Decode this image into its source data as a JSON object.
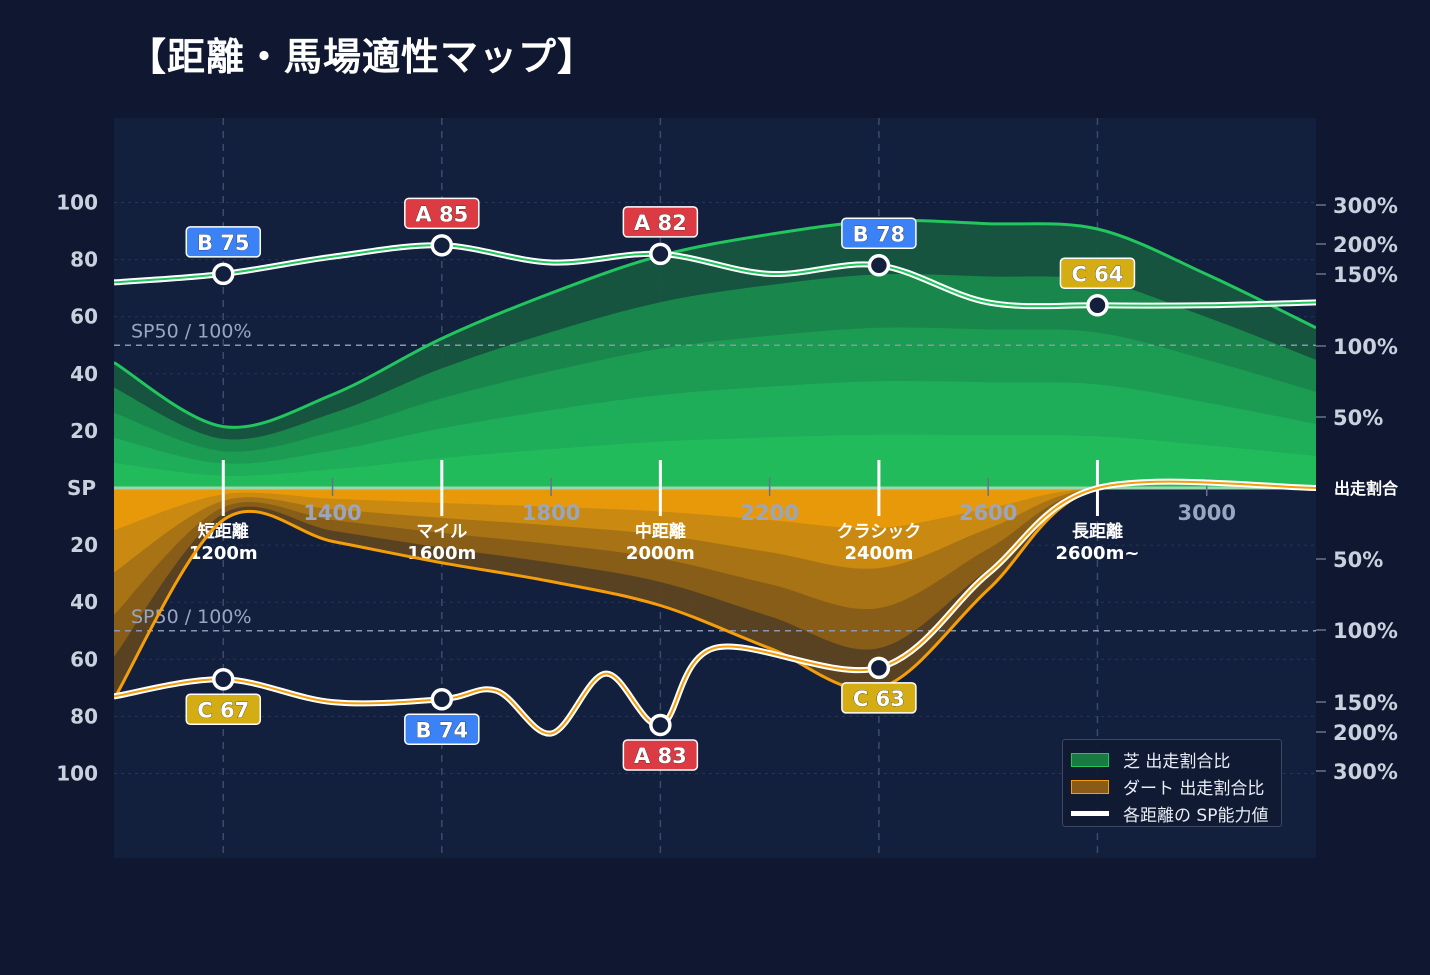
{
  "title": "【距離・馬場適性マップ】",
  "colors": {
    "background": "#0f1830",
    "plot": "#121f3d",
    "turf": "#22c55e",
    "dirt": "#f59e0b",
    "grade_a": "#dc3b43",
    "grade_b": "#3b82f6",
    "grade_c": "#d4ac14"
  },
  "chart_data": {
    "type": "area",
    "x_ticks": [
      "1400",
      "1800",
      "2200",
      "2600",
      "3000"
    ],
    "y_ticks_turf": [
      "100",
      "80",
      "60",
      "40",
      "20"
    ],
    "y_ticks_dirt": [
      "20",
      "40",
      "60",
      "80",
      "100"
    ],
    "y_center_label": "SP",
    "right_axis_center_label": "出走割合",
    "right_ticks_turf": [
      "300%",
      "200%",
      "150%",
      "100%",
      "50%"
    ],
    "right_ticks_dirt": [
      "50%",
      "100%",
      "150%",
      "200%",
      "300%"
    ],
    "reference_label": "SP50 / 100%",
    "categories": [
      {
        "name": "短距離",
        "dist": "1200m",
        "x": 1200
      },
      {
        "name": "マイル",
        "dist": "1600m",
        "x": 1600
      },
      {
        "name": "中距離",
        "dist": "2000m",
        "x": 2000
      },
      {
        "name": "クラシック",
        "dist": "2400m",
        "x": 2400
      },
      {
        "name": "長距離",
        "dist": "2600m~",
        "x": 2800
      }
    ],
    "turf_sp": [
      {
        "grade": "B",
        "value": 75,
        "label": "B 75"
      },
      {
        "grade": "A",
        "value": 85,
        "label": "A 85"
      },
      {
        "grade": "A",
        "value": 82,
        "label": "A 82"
      },
      {
        "grade": "B",
        "value": 78,
        "label": "B 78"
      },
      {
        "grade": "C",
        "value": 64,
        "label": "C 64"
      }
    ],
    "dirt_sp": [
      {
        "grade": "C",
        "value": 67,
        "label": "C 67"
      },
      {
        "grade": "B",
        "value": 74,
        "label": "B 74"
      },
      {
        "grade": "A",
        "value": 83,
        "label": "A 83"
      },
      {
        "grade": "C",
        "value": 63,
        "label": "C 63"
      }
    ],
    "turf_sp_curve": [
      [
        1000,
        72
      ],
      [
        1200,
        75
      ],
      [
        1400,
        81
      ],
      [
        1600,
        85
      ],
      [
        1800,
        79
      ],
      [
        2000,
        82
      ],
      [
        2200,
        75
      ],
      [
        2400,
        78
      ],
      [
        2600,
        65
      ],
      [
        2800,
        64
      ],
      [
        3000,
        64
      ],
      [
        3200,
        65
      ]
    ],
    "dirt_sp_curve": [
      [
        1000,
        73
      ],
      [
        1200,
        67
      ],
      [
        1400,
        75
      ],
      [
        1600,
        74
      ],
      [
        1700,
        71
      ],
      [
        1800,
        86
      ],
      [
        1900,
        65
      ],
      [
        2000,
        83
      ],
      [
        2100,
        56
      ],
      [
        2400,
        63
      ],
      [
        2600,
        30
      ],
      [
        2800,
        0
      ],
      [
        3200,
        0
      ]
    ],
    "turf_ratio_curve": [
      [
        1000,
        47
      ],
      [
        1200,
        23
      ],
      [
        1400,
        35
      ],
      [
        1600,
        56
      ],
      [
        1800,
        73
      ],
      [
        2000,
        87
      ],
      [
        2200,
        95
      ],
      [
        2400,
        100
      ],
      [
        2600,
        99
      ],
      [
        2800,
        97
      ],
      [
        3000,
        80
      ],
      [
        3200,
        60
      ]
    ],
    "dirt_ratio_curve": [
      [
        1000,
        79
      ],
      [
        1200,
        12
      ],
      [
        1400,
        20
      ],
      [
        1600,
        28
      ],
      [
        1800,
        35
      ],
      [
        2000,
        44
      ],
      [
        2200,
        60
      ],
      [
        2400,
        75
      ],
      [
        2600,
        38
      ],
      [
        2800,
        0
      ],
      [
        3200,
        0
      ]
    ],
    "legend": [
      {
        "label": "芝 出走割合比",
        "color": "#22c55e"
      },
      {
        "label": "ダート 出走割合比",
        "color": "#f59e0b"
      },
      {
        "label": "各距離の SP能力値",
        "color": "#ffffff"
      }
    ]
  }
}
